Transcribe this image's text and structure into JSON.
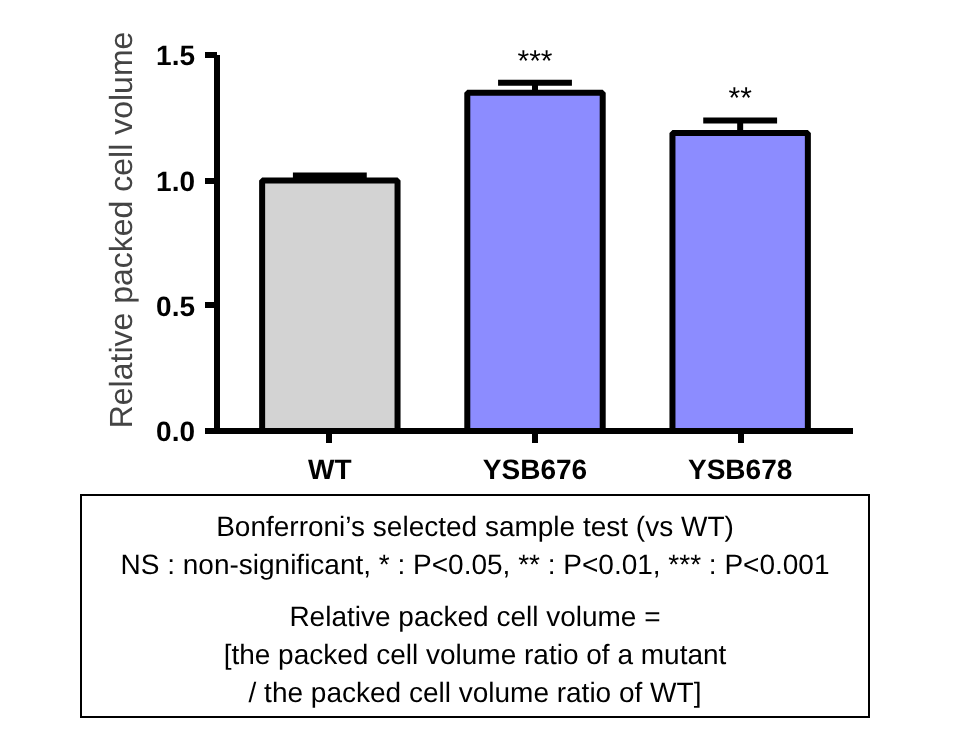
{
  "chart_data": {
    "type": "bar",
    "ylabel": "Relative packed cell volume",
    "categories": [
      "WT",
      "YSB676",
      "YSB678"
    ],
    "values": [
      1.0,
      1.35,
      1.19
    ],
    "colors": [
      "#d3d3d3",
      "#8c8cff",
      "#8c8cff"
    ],
    "errors": [
      0.02,
      0.04,
      0.05
    ],
    "ylim": [
      0,
      1.5
    ],
    "yticks": [
      {
        "value": 0,
        "label": "0.0"
      },
      {
        "value": 0.5,
        "label": "0.5"
      },
      {
        "value": 1,
        "label": "1.0"
      },
      {
        "value": 1.5,
        "label": "1.5"
      }
    ],
    "grid": false,
    "annotations": [
      {
        "text": "***",
        "x": "YSB676",
        "y": 1.39
      },
      {
        "text": "**",
        "x": "YSB678",
        "y": 1.24
      },
      "Bonferroni’s selected sample test (vs WT)",
      "NS : non-significant, * : P<0.05, ** : P<0.01, *** : P<0.001",
      "Relative packed cell volume =",
      "[the packed cell volume ratio of a mutant",
      "/ the packed cell volume ratio of WT]"
    ]
  }
}
